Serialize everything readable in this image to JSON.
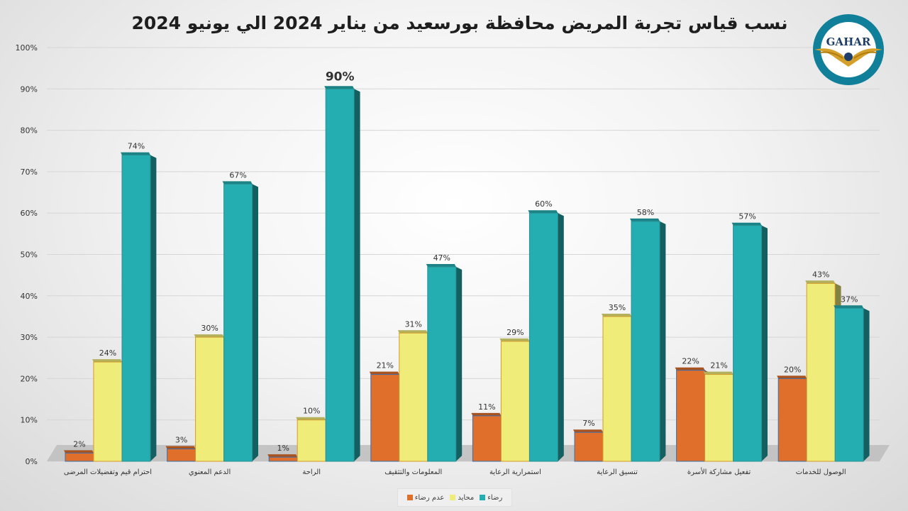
{
  "title": "نسب قياس تجربة المريض محافظة بورسعيد من يناير 2024 الي يونيو 2024",
  "logo": {
    "name": "GAHAR"
  },
  "colors": {
    "orange": "#e06f2b",
    "yellow": "#f0ec7a",
    "teal": "#24aeb1"
  },
  "chart_data": {
    "type": "bar",
    "title": "نسب قياس تجربة المريض محافظة بورسعيد من يناير 2024 الي يونيو 2024",
    "categories": [
      "احترام قيم وتفضيلات المرضى",
      "الدعم المعنوي",
      "الراحة",
      "المعلومات والتثقيف",
      "استمرارية الرعاية",
      "تنسيق الرعاية",
      "تفعيل مشاركة الأسرة",
      "الوصول للخدمات"
    ],
    "series": [
      {
        "name": "عدم رضاء",
        "values": [
          2,
          3,
          1,
          21,
          11,
          7,
          22,
          20
        ]
      },
      {
        "name": "محايد",
        "values": [
          24,
          30,
          10,
          31,
          29,
          35,
          21,
          43
        ]
      },
      {
        "name": "رضاء",
        "values": [
          74,
          67,
          90,
          47,
          60,
          58,
          57,
          37
        ]
      }
    ],
    "y_ticks": [
      "0%",
      "10%",
      "20%",
      "30%",
      "40%",
      "50%",
      "60%",
      "70%",
      "80%",
      "90%",
      "100%"
    ],
    "ylim": [
      0,
      100
    ],
    "unit": "%",
    "legend_position": "bottom",
    "grid": true
  }
}
